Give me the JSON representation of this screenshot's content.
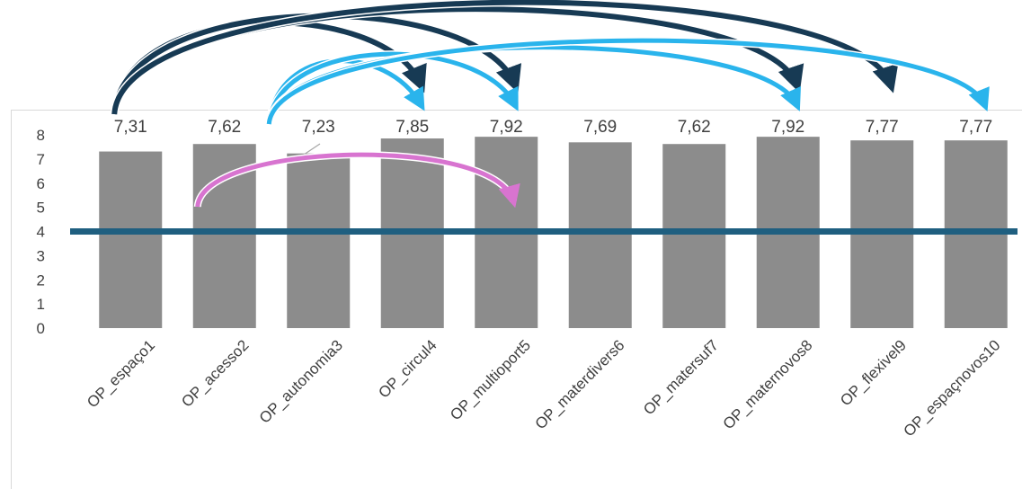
{
  "caption": "",
  "chart_data": {
    "type": "bar",
    "categories": [
      "OP_espaço1",
      "OP_acesso2",
      "OP_autonomia3",
      "OP_circul4",
      "OP_multioport5",
      "OP_materdivers6",
      "OP_matersuf7",
      "OP_maternovos8",
      "OP_flexivel9",
      "OP_espaçnovos10"
    ],
    "values": [
      7.31,
      7.62,
      7.23,
      7.85,
      7.92,
      7.69,
      7.62,
      7.92,
      7.77,
      7.77
    ],
    "value_labels": [
      "7,31",
      "7,62",
      "7,23",
      "7,85",
      "7,92",
      "7,69",
      "7,62",
      "7,92",
      "7,77",
      "7,77"
    ],
    "y_ticks": [
      0,
      1,
      2,
      3,
      4,
      5,
      6,
      7,
      8
    ],
    "ylim": [
      0,
      8
    ],
    "reference_line": 4,
    "title": "",
    "xlabel": "",
    "ylabel": "",
    "grid": false,
    "colors": {
      "bar": "#8c8c8c",
      "reference_line": "#1f5f80",
      "arrow_dark": "#173a54",
      "arrow_light": "#2ab4ec",
      "arrow_pink": "#d874d0"
    },
    "annotation_arrows": [
      {
        "from": "OP_espaço1",
        "to": "OP_circul4",
        "color": "dark"
      },
      {
        "from": "OP_espaço1",
        "to": "OP_multioport5",
        "color": "dark"
      },
      {
        "from": "OP_espaço1",
        "to": "OP_maternovos8",
        "color": "dark"
      },
      {
        "from": "OP_espaço1",
        "to": "OP_flexivel9",
        "color": "dark"
      },
      {
        "from": "OP_autonomia3",
        "to": "OP_circul4",
        "color": "light"
      },
      {
        "from": "OP_autonomia3",
        "to": "OP_multioport5",
        "color": "light"
      },
      {
        "from": "OP_autonomia3",
        "to": "OP_maternovos8",
        "color": "light"
      },
      {
        "from": "OP_autonomia3",
        "to": "OP_espaçnovos10",
        "color": "light"
      },
      {
        "from": "OP_acesso2",
        "to": "OP_multioport5",
        "color": "pink"
      }
    ]
  }
}
